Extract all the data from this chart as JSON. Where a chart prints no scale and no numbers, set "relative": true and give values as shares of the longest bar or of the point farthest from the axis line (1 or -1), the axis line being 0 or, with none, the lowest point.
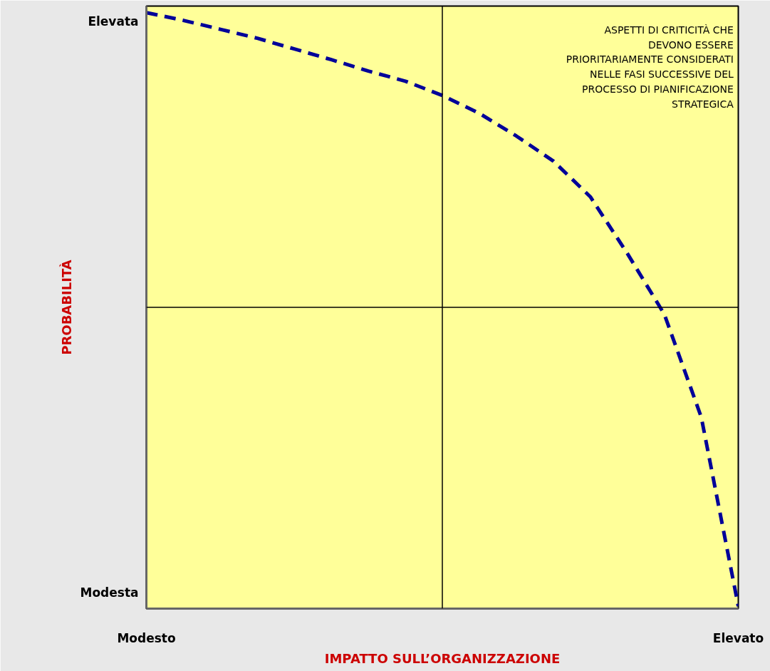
{
  "chart_data": {
    "type": "line",
    "relative": true,
    "xlabel": "IMPATTO SULL’ORGANIZZAZIONE",
    "ylabel": "PROBABILITÀ",
    "categories": [
      "Modesto",
      null,
      null,
      null,
      null,
      null,
      null,
      null,
      null,
      null,
      null,
      null,
      null,
      null,
      null,
      null,
      "Elevato"
    ],
    "series": [
      {
        "color": "#000099",
        "line_style": "dashed",
        "values": [
          1,
          0.987,
          0.972,
          0.957,
          0.939,
          0.921,
          0.902,
          0.885,
          0.861,
          0.831,
          0.793,
          0.751,
          0.691,
          0.596,
          0.494,
          0.321,
          0.004
        ]
      }
    ],
    "marker": "none",
    "annotations": [
      "Elevata",
      "Modesta",
      "ASPETTI DI CRITICITÀ CHE\nDEVONO ESSERE\nPRIORITARIAMENTE CONSIDERATI\nNELLE FASI SUCCESSIVE DEL\nPROCESSO DI PIANIFICAZIONE\nSTRATEGICA"
    ]
  }
}
